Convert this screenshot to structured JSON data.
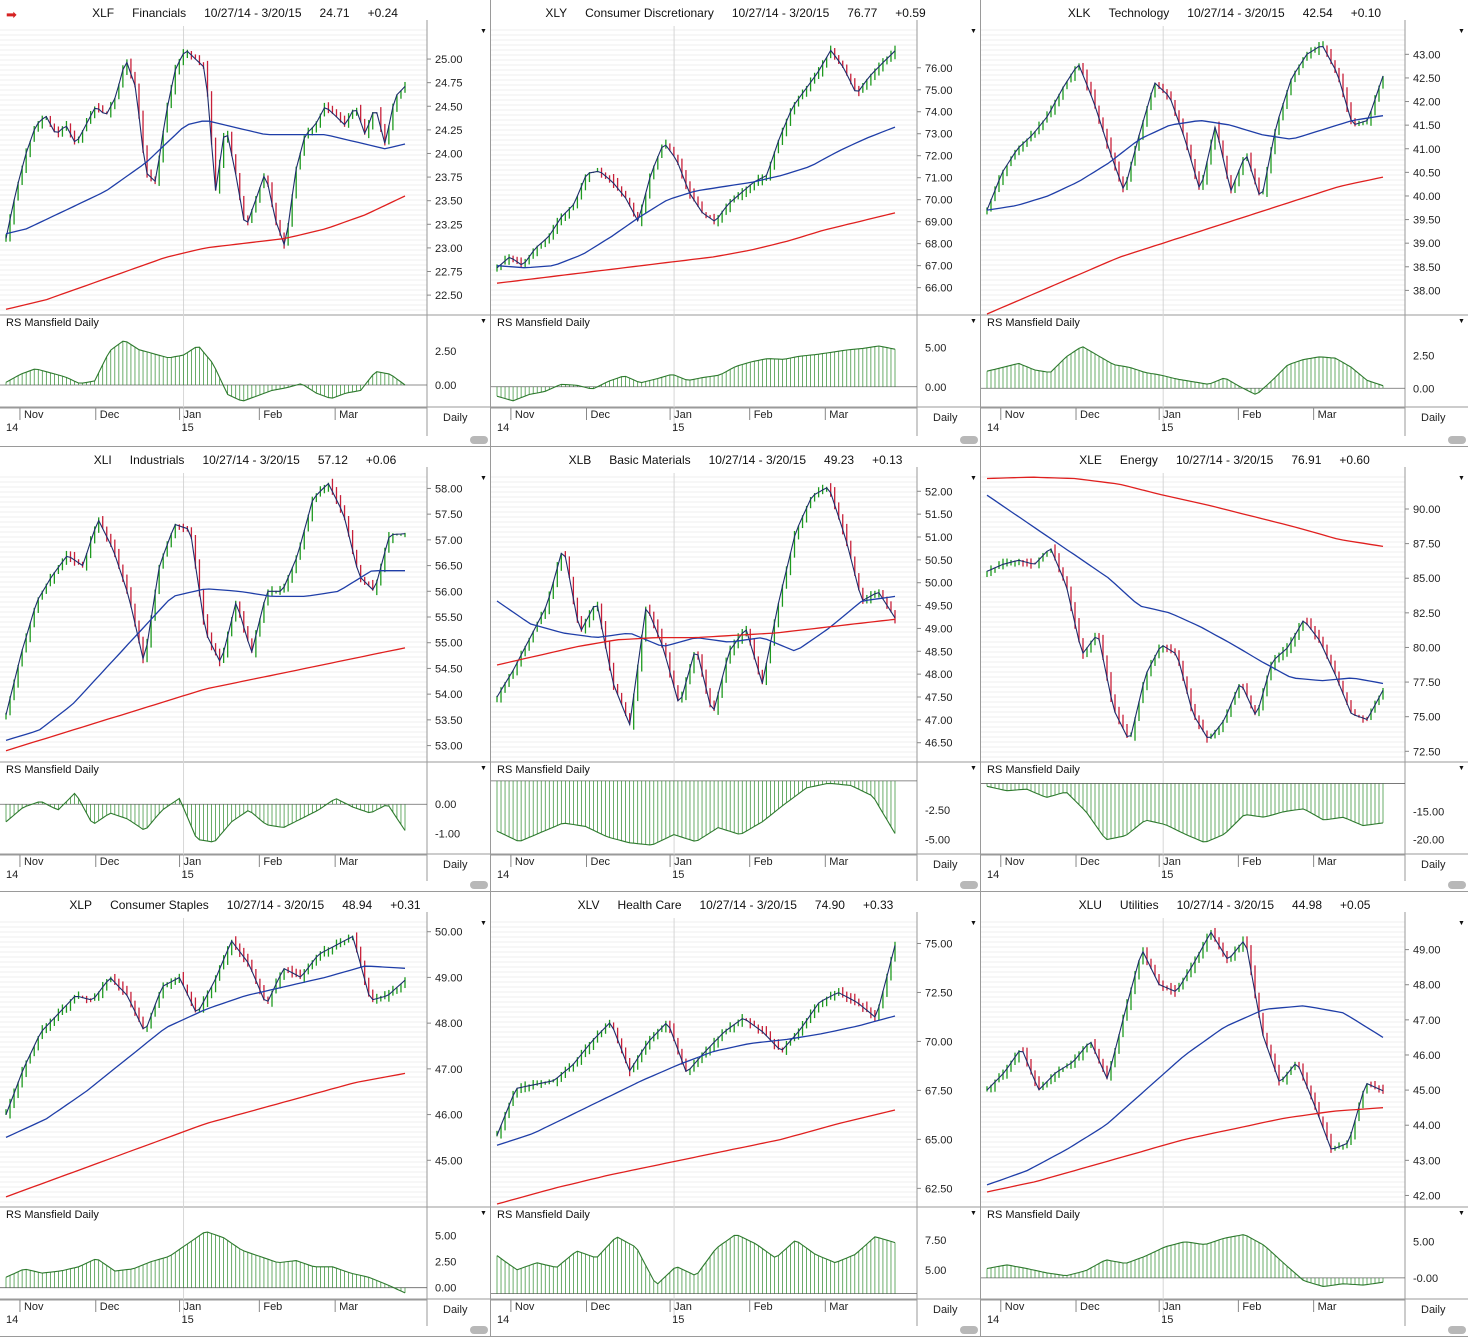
{
  "page": {
    "arrow_icon": "red-right-arrow-icon"
  },
  "common": {
    "date_range": "10/27/14 - 3/20/15",
    "rs_label": "RS Mansfield Daily",
    "period": "Daily",
    "x_months": [
      "Nov",
      "Dec",
      "Jan",
      "Feb",
      "Mar"
    ],
    "x_years": [
      "14",
      "15"
    ]
  },
  "charts": [
    {
      "symbol": "XLF",
      "name": "Financials",
      "last": "24.71",
      "change": "+0.24",
      "chart_data": {
        "type": "line",
        "ylim": [
          22.3,
          25.35
        ],
        "yticks": [
          "22.50",
          "22.75",
          "23.00",
          "23.25",
          "23.50",
          "23.75",
          "24.00",
          "24.25",
          "24.50",
          "24.75",
          "25.00"
        ],
        "price": [
          23.1,
          23.6,
          24.0,
          24.3,
          24.4,
          24.2,
          24.3,
          24.1,
          24.3,
          24.5,
          24.4,
          24.6,
          25.0,
          24.7,
          23.8,
          23.7,
          24.4,
          24.9,
          25.1,
          25.0,
          24.9,
          23.6,
          24.3,
          23.8,
          23.2,
          23.5,
          23.8,
          23.3,
          23.0,
          23.8,
          24.2,
          24.3,
          24.5,
          24.4,
          24.3,
          24.5,
          24.2,
          24.5,
          24.1,
          24.6,
          24.71
        ],
        "ma50": [
          23.15,
          23.2,
          23.3,
          23.4,
          23.5,
          23.6,
          23.75,
          23.9,
          24.1,
          24.3,
          24.35,
          24.3,
          24.25,
          24.2,
          24.2,
          24.2,
          24.2,
          24.15,
          24.1,
          24.05,
          24.1
        ],
        "ma200": [
          22.35,
          22.45,
          22.6,
          22.75,
          22.9,
          23.0,
          23.05,
          23.1,
          23.2,
          23.35,
          23.55
        ],
        "rs": {
          "ylim": [
            -1.4,
            4.2
          ],
          "yticks": [
            "0.00",
            "2.50"
          ],
          "zero": 0,
          "values": [
            0.2,
            0.8,
            1.2,
            0.9,
            0.6,
            0.1,
            0.3,
            2.5,
            3.3,
            2.6,
            2.3,
            2.0,
            2.2,
            2.9,
            1.6,
            -0.7,
            -1.2,
            -0.8,
            -0.4,
            -0.2,
            0.1,
            -0.6,
            -1.0,
            -0.6,
            -0.4,
            1.0,
            0.8,
            0.0
          ]
        }
      }
    },
    {
      "symbol": "XLY",
      "name": "Consumer Discretionary",
      "last": "76.77",
      "change": "+0.59",
      "chart_data": {
        "type": "line",
        "ylim": [
          64.8,
          77.9
        ],
        "yticks": [
          "66.00",
          "67.00",
          "68.00",
          "69.00",
          "70.00",
          "71.00",
          "72.00",
          "73.00",
          "74.00",
          "75.00",
          "76.00"
        ],
        "price": [
          66.9,
          67.4,
          67.0,
          67.8,
          68.3,
          69.2,
          69.8,
          71.2,
          71.3,
          70.8,
          70.1,
          69.0,
          71.2,
          72.6,
          71.8,
          70.3,
          69.4,
          69.0,
          69.8,
          70.3,
          70.8,
          71.1,
          72.8,
          74.2,
          75.0,
          75.8,
          76.8,
          76.0,
          74.8,
          75.6,
          76.2,
          76.77
        ],
        "ma50": [
          67.0,
          66.9,
          67.0,
          67.5,
          68.3,
          69.2,
          70.0,
          70.4,
          70.6,
          70.8,
          71.1,
          71.5,
          72.2,
          72.8,
          73.3
        ],
        "ma200": [
          66.2,
          66.4,
          66.6,
          66.8,
          67.0,
          67.2,
          67.4,
          67.7,
          68.1,
          68.6,
          69.0,
          69.4
        ],
        "rs": {
          "ylim": [
            -2.2,
            7.5
          ],
          "yticks": [
            "0.00",
            "5.00"
          ],
          "zero": 0,
          "values": [
            -1.2,
            -1.8,
            -1.0,
            -0.6,
            0.3,
            0.2,
            -0.3,
            0.7,
            1.4,
            0.5,
            1.0,
            1.6,
            0.8,
            1.2,
            1.5,
            2.6,
            3.2,
            3.6,
            3.5,
            3.9,
            4.1,
            4.4,
            4.7,
            4.9,
            5.2,
            4.8
          ]
        }
      }
    },
    {
      "symbol": "XLK",
      "name": "Technology",
      "last": "42.54",
      "change": "+0.10",
      "chart_data": {
        "type": "line",
        "ylim": [
          37.5,
          43.6
        ],
        "yticks": [
          "38.00",
          "38.50",
          "39.00",
          "39.50",
          "40.00",
          "40.50",
          "41.00",
          "41.50",
          "42.00",
          "42.50",
          "43.00"
        ],
        "price": [
          39.7,
          40.5,
          41.0,
          41.3,
          41.7,
          42.3,
          42.8,
          42.0,
          41.0,
          40.1,
          41.3,
          42.4,
          42.1,
          41.2,
          40.1,
          41.5,
          40.1,
          40.9,
          39.9,
          41.5,
          42.5,
          43.0,
          43.2,
          42.6,
          41.5,
          41.6,
          42.54
        ],
        "ma50": [
          39.7,
          39.8,
          40.0,
          40.3,
          40.7,
          41.2,
          41.5,
          41.6,
          41.5,
          41.3,
          41.2,
          41.4,
          41.6,
          41.7
        ],
        "ma200": [
          37.5,
          37.9,
          38.3,
          38.7,
          39.0,
          39.3,
          39.6,
          39.9,
          40.2,
          40.4
        ],
        "rs": {
          "ylim": [
            -1.2,
            4.6
          ],
          "yticks": [
            "0.00",
            "2.50"
          ],
          "zero": 0,
          "values": [
            1.3,
            1.6,
            1.9,
            1.4,
            1.2,
            2.4,
            3.2,
            2.5,
            1.8,
            1.6,
            1.2,
            1.0,
            0.7,
            0.5,
            0.3,
            0.8,
            0.1,
            -0.5,
            0.6,
            1.8,
            2.2,
            2.4,
            2.3,
            1.6,
            0.6,
            0.2
          ]
        }
      }
    },
    {
      "symbol": "XLI",
      "name": "Industrials",
      "last": "57.12",
      "change": "+0.06",
      "chart_data": {
        "type": "line",
        "ylim": [
          52.7,
          58.3
        ],
        "yticks": [
          "53.00",
          "53.50",
          "54.00",
          "54.50",
          "55.00",
          "55.50",
          "56.00",
          "56.50",
          "57.00",
          "57.50",
          "58.00"
        ],
        "price": [
          53.6,
          54.8,
          55.8,
          56.3,
          56.7,
          56.5,
          57.4,
          56.8,
          55.9,
          54.6,
          56.5,
          57.3,
          57.2,
          55.2,
          54.6,
          55.8,
          54.8,
          56.0,
          56.0,
          56.7,
          57.8,
          58.1,
          57.5,
          56.3,
          56.0,
          57.1,
          57.12
        ],
        "ma50": [
          53.1,
          53.3,
          53.8,
          54.5,
          55.2,
          55.9,
          56.05,
          56.0,
          55.9,
          55.9,
          56.0,
          56.4,
          56.4
        ],
        "ma200": [
          52.9,
          53.2,
          53.5,
          53.8,
          54.1,
          54.3,
          54.5,
          54.7,
          54.9
        ],
        "rs": {
          "ylim": [
            -1.6,
            1.0
          ],
          "yticks": [
            "0.00",
            "-1.00"
          ],
          "zero": 0,
          "values": [
            -0.6,
            -0.1,
            0.1,
            -0.2,
            0.4,
            -0.7,
            -0.3,
            -0.5,
            -0.9,
            -0.2,
            0.2,
            -1.2,
            -1.3,
            -0.6,
            -0.2,
            -0.7,
            -0.8,
            -0.5,
            -0.2,
            0.2,
            -0.1,
            -0.3,
            0.0,
            -0.9
          ]
        }
      }
    },
    {
      "symbol": "XLB",
      "name": "Basic Materials",
      "last": "49.23",
      "change": "+0.13",
      "chart_data": {
        "type": "line",
        "ylim": [
          46.1,
          52.4
        ],
        "yticks": [
          "46.50",
          "47.00",
          "47.50",
          "48.00",
          "48.50",
          "49.00",
          "49.50",
          "50.00",
          "50.50",
          "51.00",
          "51.50",
          "52.00"
        ],
        "price": [
          47.5,
          48.1,
          48.8,
          49.5,
          50.8,
          48.9,
          49.6,
          47.8,
          46.9,
          49.5,
          48.6,
          47.3,
          48.6,
          47.1,
          48.5,
          49.0,
          47.8,
          49.6,
          51.1,
          51.9,
          52.1,
          51.0,
          49.6,
          49.8,
          49.23
        ],
        "ma50": [
          49.6,
          49.1,
          48.9,
          48.8,
          48.9,
          48.6,
          48.8,
          48.7,
          48.8,
          48.5,
          49.0,
          49.6,
          49.7
        ],
        "ma200": [
          48.2,
          48.4,
          48.6,
          48.75,
          48.8,
          48.8,
          48.85,
          48.9,
          49.0,
          49.1,
          49.2
        ],
        "rs": {
          "ylim": [
            -6.0,
            0.5
          ],
          "yticks": [
            "-2.50",
            "-5.00"
          ],
          "zero": 0,
          "values": [
            -4.3,
            -5.2,
            -4.4,
            -3.6,
            -3.9,
            -4.8,
            -5.3,
            -5.5,
            -4.6,
            -5.2,
            -4.0,
            -4.6,
            -3.5,
            -2.0,
            -0.6,
            -0.2,
            -0.4,
            -1.3,
            -4.5
          ]
        }
      }
    },
    {
      "symbol": "XLE",
      "name": "Energy",
      "last": "76.91",
      "change": "+0.60",
      "chart_data": {
        "type": "line",
        "ylim": [
          71.8,
          92.6
        ],
        "yticks": [
          "72.50",
          "75.00",
          "77.50",
          "80.00",
          "82.50",
          "85.00",
          "87.50",
          "90.00"
        ],
        "price": [
          85.5,
          86.0,
          86.3,
          86.0,
          87.2,
          84.5,
          79.5,
          81.0,
          75.5,
          73.2,
          78.0,
          80.2,
          79.5,
          75.2,
          73.3,
          74.8,
          77.5,
          75.0,
          79.0,
          80.0,
          82.0,
          80.5,
          78.0,
          75.2,
          74.8,
          76.91
        ],
        "ma50": [
          91.0,
          89.5,
          88.0,
          86.5,
          85.0,
          83.0,
          82.5,
          81.5,
          80.3,
          79.0,
          77.8,
          77.6,
          77.8,
          77.4
        ],
        "ma200": [
          92.2,
          92.3,
          92.2,
          91.8,
          91.0,
          90.3,
          89.5,
          88.7,
          87.8,
          87.3
        ],
        "rs": {
          "ylim": [
            -22.0,
            -8.5
          ],
          "yticks": [
            "-15.00",
            "-20.00"
          ],
          "zero": -10,
          "values": [
            -10.5,
            -11.3,
            -11.0,
            -12.5,
            -11.5,
            -15.0,
            -20.0,
            -19.3,
            -16.5,
            -17.3,
            -19.0,
            -20.5,
            -19.0,
            -15.5,
            -16.0,
            -15.0,
            -14.5,
            -16.5,
            -16.0,
            -17.5,
            -17.0
          ]
        }
      }
    },
    {
      "symbol": "XLP",
      "name": "Consumer Staples",
      "last": "48.94",
      "change": "+0.31",
      "chart_data": {
        "type": "line",
        "ylim": [
          44.0,
          50.3
        ],
        "yticks": [
          "45.00",
          "46.00",
          "47.00",
          "48.00",
          "49.00",
          "50.00"
        ],
        "price": [
          46.0,
          47.0,
          47.8,
          48.2,
          48.6,
          48.5,
          49.0,
          48.6,
          47.8,
          48.8,
          49.0,
          48.2,
          48.9,
          49.8,
          49.3,
          48.4,
          49.2,
          49.0,
          49.5,
          49.7,
          49.9,
          48.5,
          48.6,
          48.94
        ],
        "ma50": [
          45.5,
          45.9,
          46.5,
          47.2,
          47.9,
          48.3,
          48.6,
          48.8,
          49.0,
          49.25,
          49.2
        ],
        "ma200": [
          44.2,
          44.6,
          45.0,
          45.4,
          45.8,
          46.1,
          46.4,
          46.7,
          46.9
        ],
        "rs": {
          "ylim": [
            -0.8,
            6.5
          ],
          "yticks": [
            "0.00",
            "2.50",
            "5.00"
          ],
          "zero": 0,
          "values": [
            1.0,
            1.8,
            1.4,
            1.6,
            2.0,
            2.8,
            1.6,
            1.8,
            2.5,
            3.0,
            4.2,
            5.4,
            4.8,
            3.6,
            3.0,
            2.4,
            2.6,
            2.0,
            2.0,
            1.4,
            1.0,
            0.3,
            -0.5
          ]
        }
      }
    },
    {
      "symbol": "XLV",
      "name": "Health Care",
      "last": "74.90",
      "change": "+0.33",
      "chart_data": {
        "type": "line",
        "ylim": [
          61.6,
          76.3
        ],
        "yticks": [
          "62.50",
          "65.00",
          "67.50",
          "70.00",
          "72.50",
          "75.00"
        ],
        "price": [
          65.2,
          67.6,
          67.8,
          68.0,
          68.8,
          70.0,
          71.0,
          68.5,
          70.0,
          71.0,
          68.4,
          69.5,
          70.5,
          71.2,
          70.5,
          69.5,
          70.6,
          72.0,
          72.5,
          72.0,
          71.2,
          74.9
        ],
        "ma50": [
          64.7,
          65.3,
          66.2,
          67.1,
          68.0,
          68.8,
          69.5,
          69.9,
          70.1,
          70.4,
          70.8,
          71.3
        ],
        "ma200": [
          61.7,
          62.5,
          63.2,
          63.8,
          64.4,
          65.0,
          65.8,
          66.5
        ],
        "rs": {
          "ylim": [
            2.8,
            9.2
          ],
          "yticks": [
            "5.00",
            "7.50"
          ],
          "zero": 3.0,
          "values": [
            6.2,
            5.0,
            5.6,
            5.2,
            6.6,
            6.0,
            7.8,
            6.9,
            3.7,
            5.3,
            4.5,
            6.8,
            8.0,
            7.2,
            6.0,
            7.5,
            6.3,
            5.6,
            6.3,
            7.8,
            7.3
          ]
        }
      }
    },
    {
      "symbol": "XLU",
      "name": "Utilities",
      "last": "44.98",
      "change": "+0.05",
      "chart_data": {
        "type": "line",
        "ylim": [
          41.7,
          49.9
        ],
        "yticks": [
          "42.00",
          "43.00",
          "44.00",
          "45.00",
          "46.00",
          "47.00",
          "48.00",
          "49.00"
        ],
        "price": [
          45.0,
          45.5,
          46.2,
          45.0,
          45.5,
          45.8,
          46.4,
          45.3,
          47.2,
          49.0,
          48.0,
          47.8,
          48.6,
          49.5,
          48.7,
          49.3,
          46.6,
          45.2,
          45.8,
          44.6,
          43.3,
          43.5,
          45.2,
          44.98
        ],
        "ma50": [
          42.3,
          42.7,
          43.3,
          44.0,
          45.0,
          46.0,
          46.8,
          47.3,
          47.4,
          47.2,
          46.5
        ],
        "ma200": [
          42.1,
          42.4,
          42.8,
          43.2,
          43.6,
          43.9,
          44.2,
          44.4,
          44.5
        ],
        "rs": {
          "ylim": [
            -2.5,
            8.0
          ],
          "yticks": [
            "-0.00",
            "5.00"
          ],
          "zero": 0,
          "values": [
            1.3,
            1.8,
            1.3,
            0.7,
            0.3,
            1.0,
            2.5,
            2.0,
            3.0,
            4.3,
            5.0,
            4.6,
            5.5,
            6.0,
            4.5,
            2.0,
            -0.4,
            -1.2,
            -0.8,
            -1.0,
            -0.6
          ]
        }
      }
    }
  ]
}
